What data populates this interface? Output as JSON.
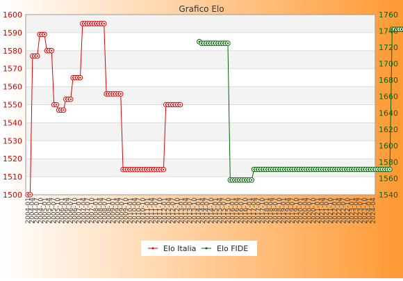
{
  "chart_data": {
    "type": "line",
    "title": "Grafico Elo",
    "background": {
      "from": "#ffffff",
      "to": "#ff9933"
    },
    "x_tick_labels": [
      "2004-01",
      "2004-04",
      "2004-07",
      "2004-10",
      "2005-01",
      "2005-04",
      "2005-07",
      "2005-10",
      "2006-01",
      "2006-04",
      "2006-07",
      "2006-10",
      "2007-01",
      "2007-04",
      "2007-07",
      "2007-10",
      "2008-01",
      "2008-04",
      "2008-07",
      "2008-10",
      "2009-01",
      "2009-04",
      "2009-07",
      "2009-10",
      "2010-01",
      "2010-04",
      "2010-07",
      "2010-10",
      "2011-01",
      "2011-04",
      "2011-07",
      "2011-10",
      "2012-01",
      "2012-04",
      "2012-07",
      "2012-10",
      "2013-01",
      "2013-04",
      "2013-07",
      "2013-10",
      "2014-01",
      "2014-04",
      "2014-07",
      "2014-10",
      "2015-01",
      "2015-04",
      "2015-07",
      "2015-10",
      "2016-01",
      "2016-04",
      "2016-07",
      "2016-10",
      "2017-01",
      "2017-04",
      "2017-07",
      "2017-10",
      "2018-01",
      "2018-04",
      "2018-07",
      "2018-10",
      "2019-01",
      "2019-04",
      "2019-07",
      "2019-10",
      "2020-01",
      "2020-04",
      "2020-07",
      "2020-10",
      "2021-01",
      "2021-04",
      "2021-07",
      "2021-10",
      "2022-01",
      "2022-04",
      "2022-07",
      "2022-10",
      "2023-01",
      "2023-04",
      "2023-07",
      "2023-10",
      "2024-01",
      "2024-04"
    ],
    "y_left": {
      "min": 1500,
      "max": 1600,
      "ticks": [
        1500,
        1510,
        1520,
        1530,
        1540,
        1550,
        1560,
        1570,
        1580,
        1590,
        1600
      ]
    },
    "y_right": {
      "min": 1540,
      "max": 1760,
      "ticks": [
        1540,
        1560,
        1580,
        1600,
        1620,
        1640,
        1660,
        1680,
        1700,
        1720,
        1740,
        1760
      ]
    },
    "legend_position": "bottom-center",
    "series": [
      {
        "name": "Elo Italia",
        "color": "#dd0000",
        "axis": "left",
        "values": [
          1500,
          1500,
          1577,
          1577,
          1577,
          1589,
          1589,
          1589,
          1580,
          1580,
          1580,
          1550,
          1550,
          1547,
          1547,
          1547,
          1553,
          1553,
          1553,
          1565,
          1565,
          1565,
          1565,
          1595,
          1595,
          1595,
          1595,
          1595,
          1595,
          1595,
          1595,
          1595,
          1595,
          1556,
          1556,
          1556,
          1556,
          1556,
          1556,
          1556,
          1514,
          1514,
          1514,
          1514,
          1514,
          1514,
          1514,
          1514,
          1514,
          1514,
          1514,
          1514,
          1514,
          1514,
          1514,
          1514,
          1514,
          1514,
          1550,
          1550,
          1550,
          1550,
          1550,
          1550,
          1550,
          null,
          null,
          null,
          null,
          null,
          null,
          null,
          null,
          null,
          null,
          null,
          null,
          null,
          null,
          null,
          null,
          null,
          null,
          null,
          null,
          null,
          null,
          null,
          null,
          null,
          null,
          null,
          null,
          null,
          null,
          null,
          null,
          null,
          null,
          null,
          null,
          null,
          null,
          null,
          null,
          null,
          null,
          null,
          null,
          null,
          null,
          null,
          null,
          null,
          null,
          null,
          null,
          null,
          null,
          null,
          null,
          null,
          null,
          null,
          null,
          null,
          null,
          null,
          null,
          null,
          null,
          null,
          null,
          null,
          null,
          null,
          null,
          null,
          null,
          null,
          null,
          null,
          null,
          null,
          null,
          null
        ]
      },
      {
        "name": "Elo FIDE",
        "color": "#006600",
        "axis": "right",
        "values": [
          null,
          null,
          null,
          null,
          null,
          null,
          null,
          null,
          null,
          null,
          null,
          null,
          null,
          null,
          null,
          null,
          null,
          null,
          null,
          null,
          null,
          null,
          null,
          null,
          null,
          null,
          null,
          null,
          null,
          null,
          null,
          null,
          null,
          null,
          null,
          null,
          null,
          null,
          null,
          null,
          null,
          null,
          null,
          null,
          null,
          null,
          null,
          null,
          null,
          null,
          null,
          null,
          null,
          null,
          null,
          null,
          null,
          null,
          null,
          null,
          null,
          null,
          null,
          null,
          null,
          null,
          null,
          null,
          null,
          null,
          null,
          null,
          1727,
          1725,
          1725,
          1725,
          1725,
          1725,
          1725,
          1725,
          1725,
          1725,
          1725,
          1725,
          1725,
          1558,
          1558,
          1558,
          1558,
          1558,
          1558,
          1558,
          1558,
          1558,
          1558,
          1571,
          1571,
          1571,
          1571,
          1571,
          1571,
          1571,
          1571,
          1571,
          1571,
          1571,
          1571,
          1571,
          1571,
          1571,
          1571,
          1571,
          1571,
          1571,
          1571,
          1571,
          1571,
          1571,
          1571,
          1571,
          1571,
          1571,
          1571,
          1571,
          1571,
          1571,
          1571,
          1571,
          1571,
          1571,
          1571,
          1571,
          1571,
          1571,
          1571,
          1571,
          1571,
          1571,
          1571,
          1571,
          1571,
          1571,
          1571,
          1571,
          1571,
          1571,
          1571,
          1571,
          1571,
          1571,
          1571,
          1571,
          1571,
          1742,
          1742,
          1742,
          1742,
          1742,
          1742,
          1742,
          1742,
          1742,
          1742,
          1742,
          1742,
          1742,
          1742,
          1742,
          1742,
          1742,
          1742,
          1742,
          1742,
          1742,
          1742,
          1742,
          1742,
          1742,
          1742,
          1742,
          1742,
          1742,
          1742,
          1742,
          1742,
          1742
        ]
      }
    ]
  }
}
